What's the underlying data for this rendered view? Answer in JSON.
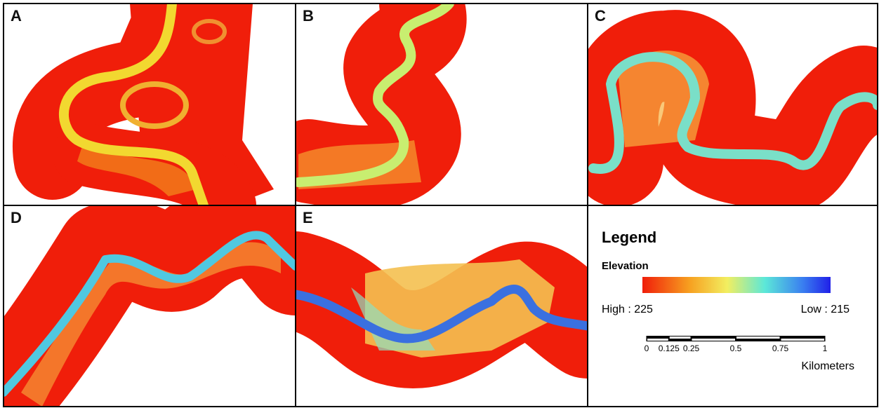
{
  "panels": [
    {
      "label": "A"
    },
    {
      "label": "B"
    },
    {
      "label": "C"
    },
    {
      "label": "D"
    },
    {
      "label": "E"
    }
  ],
  "legend": {
    "title": "Legend",
    "subtitle": "Elevation",
    "high": "High : 225",
    "low": "Low : 215"
  },
  "scale_bar": {
    "ticks": [
      0,
      0.125,
      0.25,
      0.5,
      0.75,
      1
    ],
    "unit": "Kilometers"
  }
}
